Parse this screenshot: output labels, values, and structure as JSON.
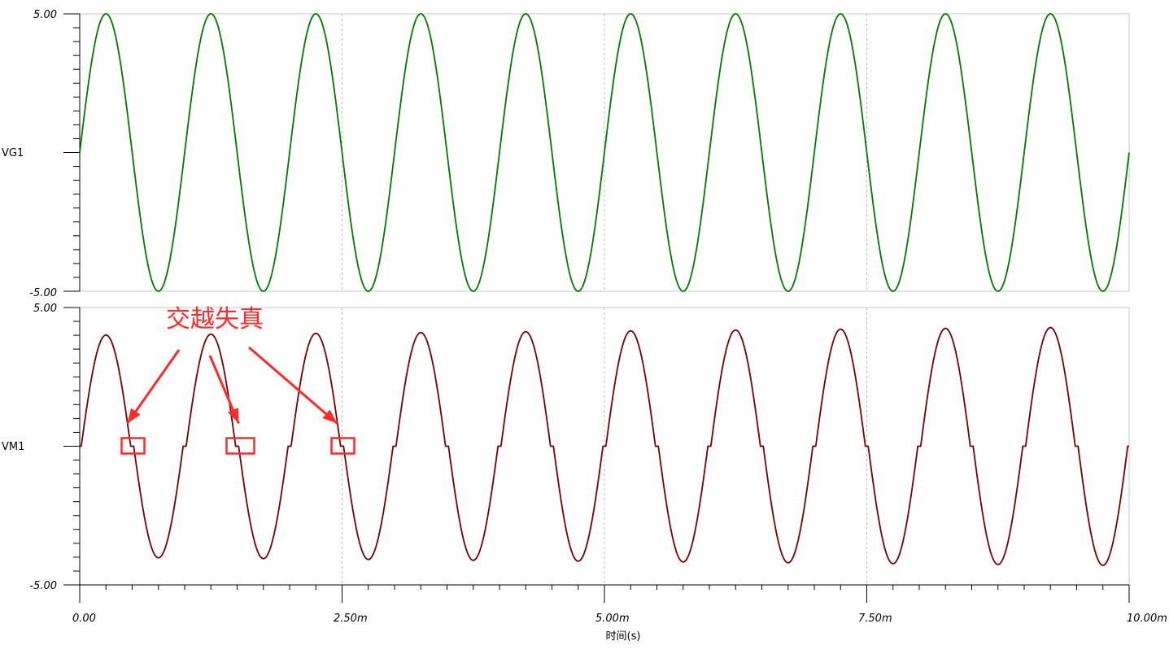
{
  "chart_data": {
    "type": "line",
    "xlabel": "时间(s)",
    "x_unit": "s",
    "xlim": [
      0,
      0.01
    ],
    "x_ticks": [
      0,
      0.0025,
      0.005,
      0.0075,
      0.01
    ],
    "x_tick_labels": [
      "0.00",
      "2.50m",
      "5.00m",
      "7.50m",
      "10.00m"
    ],
    "grid": "dashed vertical at major x ticks",
    "panels": [
      {
        "name": "VG1",
        "color": "#007a00",
        "ylim": [
          -5,
          5
        ],
        "ylim_labels": [
          "5.00",
          "-5.00"
        ],
        "signal": {
          "shape": "sine",
          "amplitude": 5,
          "frequency_hz": 1000,
          "phase_deg": 0
        }
      },
      {
        "name": "VM1",
        "color": "#7a0000",
        "ylim": [
          -5,
          5
        ],
        "ylim_labels": [
          "5.00",
          "-5.00"
        ],
        "signal": {
          "shape": "sine with crossover distortion",
          "peak_start": 4.0,
          "peak_end": 4.3,
          "frequency_hz": 1000,
          "deadband_volts": 0.4
        }
      }
    ],
    "annotation": {
      "text": "交越失真",
      "color": "#ff2a2a",
      "marked_crossings_s": [
        0.0005,
        0.0015,
        0.0025
      ]
    }
  }
}
